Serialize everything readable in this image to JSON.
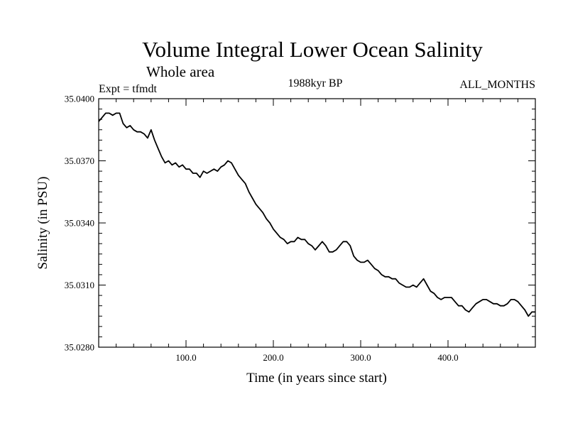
{
  "chart_data": {
    "type": "line",
    "title": "Volume Integral Lower Ocean Salinity",
    "subtitle": "Whole area",
    "experiment_label": "Expt = tfmdt",
    "period_label": "1988kyr BP",
    "months_label": "ALL_MONTHS",
    "xlabel": "Time (in years since start)",
    "ylabel": "Salinity (in PSU)",
    "xlim": [
      0,
      500
    ],
    "ylim": [
      35.028,
      35.04
    ],
    "x_ticks": [
      100,
      200,
      300,
      400
    ],
    "x_tick_labels": [
      "100.0",
      "200.0",
      "300.0",
      "400.0"
    ],
    "y_ticks": [
      35.028,
      35.031,
      35.034,
      35.037,
      35.04
    ],
    "y_tick_labels": [
      "35.0280",
      "35.0310",
      "35.0340",
      "35.0370",
      "35.0400"
    ],
    "series": [
      {
        "name": "Salinity",
        "x": [
          0,
          4,
          8,
          12,
          16,
          20,
          24,
          28,
          32,
          36,
          40,
          44,
          48,
          52,
          56,
          60,
          64,
          68,
          72,
          76,
          80,
          84,
          88,
          92,
          96,
          100,
          104,
          108,
          112,
          116,
          120,
          124,
          128,
          132,
          136,
          140,
          144,
          148,
          152,
          156,
          160,
          164,
          168,
          172,
          176,
          180,
          184,
          188,
          192,
          196,
          200,
          204,
          208,
          212,
          216,
          220,
          224,
          228,
          232,
          236,
          240,
          244,
          248,
          252,
          256,
          260,
          264,
          268,
          272,
          276,
          280,
          284,
          288,
          292,
          296,
          300,
          304,
          308,
          312,
          316,
          320,
          324,
          328,
          332,
          336,
          340,
          344,
          348,
          352,
          356,
          360,
          364,
          368,
          372,
          376,
          380,
          384,
          388,
          392,
          396,
          400,
          404,
          408,
          412,
          416,
          420,
          424,
          428,
          432,
          436,
          440,
          444,
          448,
          452,
          456,
          460,
          464,
          468,
          472,
          476,
          480,
          484,
          488,
          492,
          496,
          500
        ],
        "values": [
          35.0389,
          35.0391,
          35.0393,
          35.0393,
          35.0392,
          35.0393,
          35.0393,
          35.0388,
          35.0386,
          35.0387,
          35.0385,
          35.0384,
          35.0384,
          35.0383,
          35.0381,
          35.0385,
          35.038,
          35.0376,
          35.0372,
          35.0369,
          35.037,
          35.0368,
          35.0369,
          35.0367,
          35.0368,
          35.0366,
          35.0366,
          35.0364,
          35.0364,
          35.0362,
          35.0365,
          35.0364,
          35.0365,
          35.0366,
          35.0365,
          35.0367,
          35.0368,
          35.037,
          35.0369,
          35.0366,
          35.0363,
          35.0361,
          35.0359,
          35.0355,
          35.0352,
          35.0349,
          35.0347,
          35.0345,
          35.0342,
          35.034,
          35.0337,
          35.0335,
          35.0333,
          35.0332,
          35.033,
          35.0331,
          35.0331,
          35.0333,
          35.0332,
          35.0332,
          35.033,
          35.0329,
          35.0327,
          35.0329,
          35.0331,
          35.0329,
          35.0326,
          35.0326,
          35.0327,
          35.0329,
          35.0331,
          35.0331,
          35.0329,
          35.0324,
          35.0322,
          35.0321,
          35.0321,
          35.0322,
          35.032,
          35.0318,
          35.0317,
          35.0315,
          35.0314,
          35.0314,
          35.0313,
          35.0313,
          35.0311,
          35.031,
          35.0309,
          35.0309,
          35.031,
          35.0309,
          35.0311,
          35.0313,
          35.031,
          35.0307,
          35.0306,
          35.0304,
          35.0303,
          35.0304,
          35.0304,
          35.0304,
          35.0302,
          35.03,
          35.03,
          35.0298,
          35.0297,
          35.0299,
          35.0301,
          35.0302,
          35.0303,
          35.0303,
          35.0302,
          35.0301,
          35.0301,
          35.03,
          35.03,
          35.0301,
          35.0303,
          35.0303,
          35.0302,
          35.03,
          35.0298,
          35.0295,
          35.0297,
          35.0297
        ]
      }
    ]
  },
  "colors": {
    "line": "#000000",
    "axis": "#000000",
    "background": "#ffffff"
  }
}
